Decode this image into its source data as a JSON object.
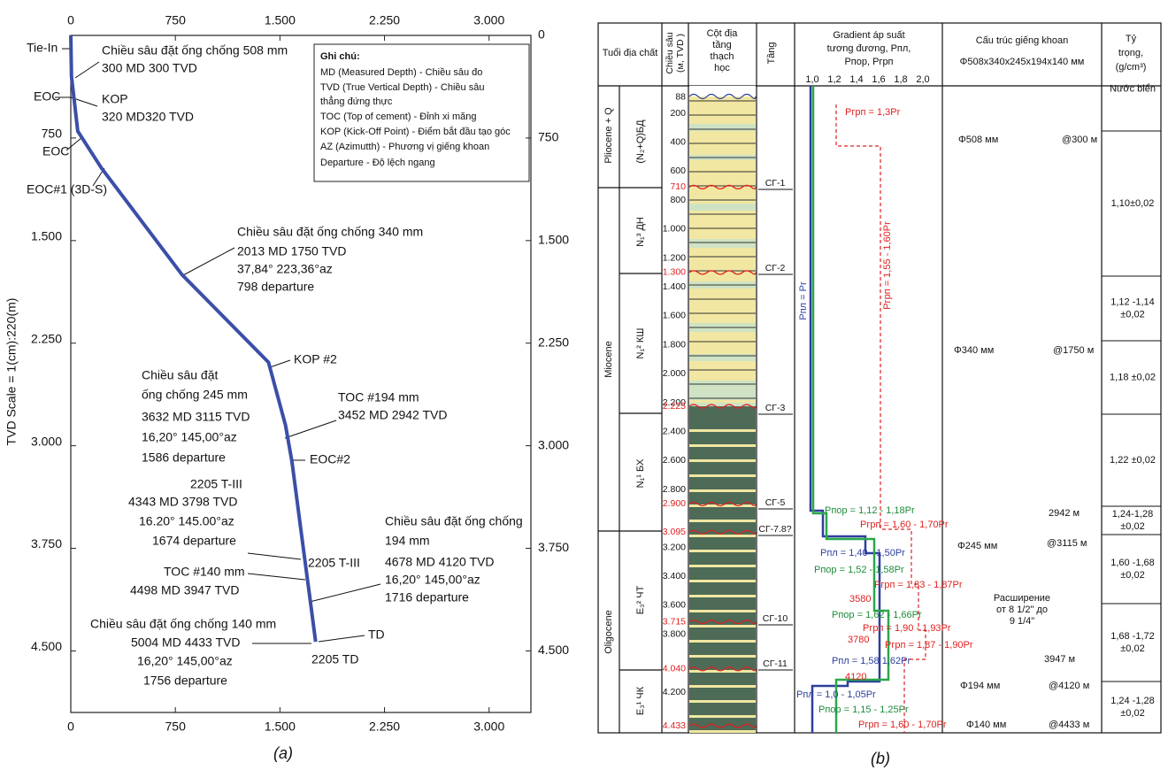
{
  "chart_data": {
    "type": "line",
    "y_label": "TVD Scale = 1(cm):220(m)",
    "caption": "(a)",
    "x": [
      0,
      5,
      50,
      220,
      798,
      1418,
      1540,
      1586,
      1674,
      1716,
      1756
    ],
    "series": [
      {
        "color": "#3b4fa8",
        "values": [
          0,
          300,
          700,
          970,
          1750,
          2390,
          2850,
          3115,
          3798,
          4120,
          4433
        ]
      }
    ],
    "xlim": [
      0,
      3300
    ],
    "ylim": [
      4950,
      0
    ],
    "xticks": [
      0,
      750,
      {
        "value": 1500,
        "label": "1.500"
      },
      {
        "value": 2250,
        "label": "2.250"
      },
      {
        "value": 3000,
        "label": "3.000"
      }
    ],
    "yticks": [
      0,
      750,
      {
        "value": 1500,
        "label": "1.500"
      },
      {
        "value": 2250,
        "label": "2.250"
      },
      {
        "value": 3000,
        "label": "3.000"
      },
      {
        "value": 3750,
        "label": "3.750"
      },
      {
        "value": 4500,
        "label": "4.500"
      }
    ],
    "notes": [
      "Ghi chú:",
      "MD (Measured Depth) - Chiều sâu đo",
      "TVD (True Vertical Depth) - Chiều sâu",
      "thẳng đứng thực",
      "TOC (Top of cement) - Đỉnh xi măng",
      "KOP (Kick-Off Point) - Điểm bắt đầu tạo góc",
      "AZ (Azimutth) - Phương vị giếng khoan",
      "Departure - Độ lệch ngang"
    ],
    "annotations": [
      "Tie-In",
      "Chiều sâu đặt ống chống 508 mm",
      "300 MD  300 TVD",
      "EOC",
      "KOP",
      "320 MD320 TVD",
      "EOC",
      "EOC#1 (3D-S)",
      "Chiều sâu đặt ống chống 340 mm",
      "2013 MD  1750 TVD",
      "37,84°  223,36°az",
      "798 departure",
      "KOP #2",
      "Chiều sâu đặt",
      "ống chống 245 mm",
      "3632 MD  3115 TVD",
      "16,20°  145,00°az",
      "1586 departure",
      "TOC #194 mm",
      "3452 MD  2942 TVD",
      "EOC#2",
      "2205 T-III",
      "4343 MD  3798 TVD",
      "16.20°  145.00°az",
      "1674 departure",
      "Chiều sâu đặt ống chống",
      "194 mm",
      "4678 MD  4120 TVD",
      "16,20°  145,00°az",
      "1716 departure",
      "2205 T-III",
      "TOC #140 mm",
      "4498 MD  3947 TVD",
      "Chiều sâu đặt ống chống 140 mm",
      "5004 MD  4433 TVD",
      "16,20°  145,00°az",
      "1756 departure",
      "TD",
      "2205 TD"
    ]
  },
  "panel_b": {
    "caption": "(b)",
    "header": {
      "age": "Tuổi địa chất",
      "depth": [
        "Chiều sâu",
        "(м, TVD )"
      ],
      "column": [
        "Cột địa",
        "tầng",
        "thạch",
        "học"
      ],
      "horizon": "Tầng",
      "gradient": [
        "Gradient áp suất",
        "tương đương, Pпл,",
        "Pпор, Pгрп"
      ],
      "well": "Cấu trúc giếng khoan",
      "well_sub": "Φ508x340x245x194x140 мм",
      "density": [
        "Tỷ",
        "trọng,",
        "(g/cm³)"
      ]
    },
    "gradient_scale": [
      "1,0",
      "1,2",
      "1,4",
      "1,6",
      "1,8",
      "2,0"
    ],
    "epochs": [
      "Pliocene + Q",
      "Miocene",
      "Oligocene"
    ],
    "formations": [
      "(N₂+Q)БД",
      "N₁³ ДН",
      "N₁² КШ",
      "N₁¹ БХ",
      "E₃² ЧТ",
      "E₃¹ ЧК"
    ],
    "depth_ticks": [
      88,
      200,
      400,
      600,
      800,
      {
        "value": 1000,
        "label": "1.000"
      },
      {
        "value": 1200,
        "label": "1.200"
      },
      {
        "value": 1400,
        "label": "1.400"
      },
      {
        "value": 1600,
        "label": "1.600"
      },
      {
        "value": 1800,
        "label": "1.800"
      },
      {
        "value": 2000,
        "label": "2.000"
      },
      {
        "value": 2200,
        "label": "2.200"
      },
      {
        "value": 2400,
        "label": "2.400"
      },
      {
        "value": 2600,
        "label": "2.600"
      },
      {
        "value": 2800,
        "label": "2.800"
      },
      {
        "value": 3200,
        "label": "3.200"
      },
      {
        "value": 3400,
        "label": "3.400"
      },
      {
        "value": 3600,
        "label": "3.600"
      },
      {
        "value": 3800,
        "label": "3.800"
      },
      {
        "value": 4200,
        "label": "4.200"
      }
    ],
    "boundary_depths": [
      710,
      {
        "value": 1300,
        "label": "1.300"
      },
      {
        "value": 2225,
        "label": "2.225"
      },
      {
        "value": 2900,
        "label": "2.900"
      },
      {
        "value": 3095,
        "label": "3.095"
      },
      {
        "value": 3715,
        "label": "3.715"
      },
      {
        "value": 4040,
        "label": "4.040"
      },
      {
        "value": 4433,
        "label": "4.433"
      }
    ],
    "horizons": [
      "СГ-1",
      "СГ-2",
      "СГ-3",
      "СГ-5",
      "СГ-7.8?",
      "СГ-10",
      "СГ-11"
    ],
    "gradient_labels": [
      "Pгрп = 1,3Pr",
      "Pгрп = 1,55 - 1,60Pr",
      "Pпл = Pr",
      "Pпор = 1,12 - 1,18Pr",
      "Pгрп = 1,60 - 1,70Pr",
      "Pпл = 1,40 - 1,50Pr",
      "Pпор = 1,52 - 1,58Pr",
      "Pгрп = 1,83 - 1,87Pr",
      "3580",
      "Pпор = 1,62 - 1,66Pr",
      "Pгрп = 1,90 - 1,93Pr",
      "3780",
      "Pгрп = 1,87 - 1,90Pr",
      "Pпл = 1,58 1,62Pr",
      "4120",
      "Pпл = 1,0 - 1,05Pr",
      "Pпор = 1,15 - 1,25Pr",
      "Pгрп = 1,60 - 1,70Pr"
    ],
    "well_labels": [
      "Φ508 мм",
      "@300 м",
      "Φ340 мм",
      "@1750 м",
      "2942 м",
      "Φ245 мм",
      "@3115 м",
      "Расширение",
      "от 8 1/2\" до",
      "9 1/4\"",
      "3947 м",
      "Φ194 мм",
      "@4120 м",
      "Φ140 мм",
      "@4433 м"
    ],
    "density": [
      [
        "Nước biển"
      ],
      [
        "1,10±0,02"
      ],
      [
        "1,12 -1,14",
        "±0,02"
      ],
      [
        "1,18 ±0,02"
      ],
      [
        "1,22 ±0,02"
      ],
      [
        "1,24-1,28",
        "±0,02"
      ],
      [
        "1,60 -1,68",
        "±0,02"
      ],
      [
        "1,68 -1,72",
        "±0,02"
      ],
      [
        "1,24 -1,28",
        "±0,02"
      ]
    ]
  }
}
